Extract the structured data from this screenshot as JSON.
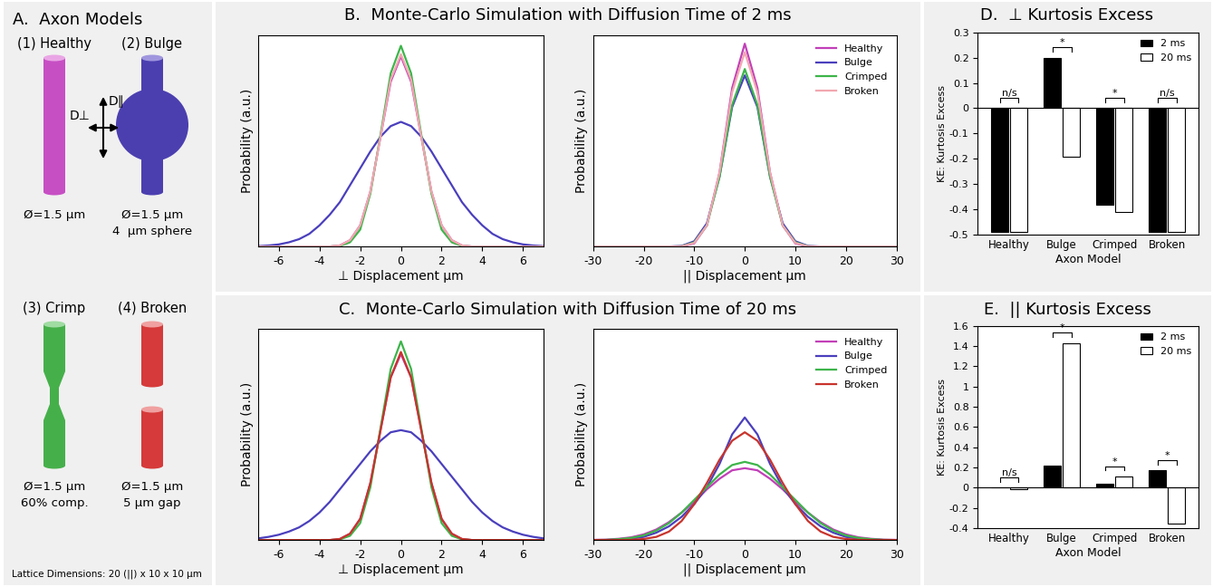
{
  "diagram": {
    "title": "A.  Axon Models",
    "models": [
      {
        "label": "(1) Healthy",
        "caption": [
          "Ø=1.5 µm"
        ]
      },
      {
        "label": "(2) Bulge",
        "caption": [
          "Ø=1.5 µm",
          "4  µm sphere"
        ]
      },
      {
        "label": "(3) Crimp",
        "caption": [
          "Ø=1.5 µm",
          "60% comp."
        ]
      },
      {
        "label": "(4) Broken",
        "caption": [
          "Ø=1.5 µm",
          "5 µm gap"
        ]
      }
    ],
    "axis_labels": {
      "parallel": "D∥",
      "perpendicular": "D⊥"
    },
    "footer": "Lattice Dimensions: 20 (||) x 10 x 10 µm"
  },
  "chart_data": [
    {
      "type": "line",
      "title": "B.  Monte-Carlo Simulation with Diffusion Time of 2 ms",
      "xlabel": "⊥ Displacement µm",
      "ylabel": "Probability (a.u.)",
      "x": [
        -7,
        -6.5,
        -6,
        -5.5,
        -5,
        -4.5,
        -4,
        -3.5,
        -3,
        -2.5,
        -2,
        -1.5,
        -1,
        -0.5,
        0,
        0.5,
        1,
        1.5,
        2,
        2.5,
        3,
        3.5,
        4,
        4.5,
        5,
        5.5,
        6,
        6.5,
        7
      ],
      "series": [
        {
          "name": "Healthy",
          "color": "#c23fb8",
          "values": [
            0,
            0,
            0,
            0,
            0,
            0,
            0,
            0,
            0.005,
            0.03,
            0.1,
            0.26,
            0.52,
            0.78,
            0.9,
            0.78,
            0.52,
            0.26,
            0.1,
            0.03,
            0.005,
            0,
            0,
            0,
            0,
            0,
            0,
            0,
            0
          ]
        },
        {
          "name": "Bulge",
          "color": "#4a3fbd",
          "values": [
            0.002,
            0.005,
            0.01,
            0.02,
            0.035,
            0.06,
            0.1,
            0.15,
            0.21,
            0.29,
            0.37,
            0.45,
            0.52,
            0.57,
            0.59,
            0.57,
            0.52,
            0.45,
            0.37,
            0.29,
            0.21,
            0.15,
            0.1,
            0.06,
            0.035,
            0.02,
            0.01,
            0.005,
            0.002
          ]
        },
        {
          "name": "Crimped",
          "color": "#3db54a",
          "values": [
            0,
            0,
            0,
            0,
            0,
            0,
            0,
            0,
            0.003,
            0.02,
            0.08,
            0.25,
            0.53,
            0.82,
            0.95,
            0.82,
            0.53,
            0.25,
            0.08,
            0.02,
            0.003,
            0,
            0,
            0,
            0,
            0,
            0,
            0,
            0
          ]
        },
        {
          "name": "Broken",
          "color": "#f2a7b0",
          "values": [
            0,
            0,
            0,
            0,
            0,
            0,
            0,
            0,
            0.005,
            0.03,
            0.1,
            0.26,
            0.52,
            0.79,
            0.91,
            0.79,
            0.52,
            0.26,
            0.1,
            0.03,
            0.005,
            0,
            0,
            0,
            0,
            0,
            0,
            0,
            0
          ]
        }
      ],
      "xlim": [
        -7,
        7
      ],
      "xticks": [
        -6,
        -4,
        -2,
        0,
        2,
        4,
        6
      ],
      "ylim": [
        0,
        1
      ],
      "tick_labels": "x"
    },
    {
      "type": "line",
      "xlabel": "|| Displacement µm",
      "ylabel": "Probability (a.u.)",
      "x": [
        -30,
        -27.5,
        -25,
        -22.5,
        -20,
        -17.5,
        -15,
        -12.5,
        -10,
        -7.5,
        -5,
        -2.5,
        0,
        2.5,
        5,
        7.5,
        10,
        12.5,
        15,
        17.5,
        20,
        22.5,
        25,
        27.5,
        30
      ],
      "series": [
        {
          "name": "Healthy",
          "color": "#c23fb8",
          "values": [
            0,
            0,
            0,
            0,
            0,
            0,
            0,
            0,
            0.015,
            0.1,
            0.35,
            0.75,
            0.96,
            0.75,
            0.35,
            0.1,
            0.015,
            0,
            0,
            0,
            0,
            0,
            0,
            0,
            0
          ]
        },
        {
          "name": "Bulge",
          "color": "#4a3fbd",
          "values": [
            0,
            0,
            0,
            0,
            0,
            0,
            0,
            0.003,
            0.025,
            0.11,
            0.33,
            0.66,
            0.81,
            0.66,
            0.33,
            0.11,
            0.025,
            0.003,
            0,
            0,
            0,
            0,
            0,
            0,
            0
          ]
        },
        {
          "name": "Crimped",
          "color": "#3db54a",
          "values": [
            0,
            0,
            0,
            0,
            0,
            0,
            0,
            0.001,
            0.02,
            0.1,
            0.33,
            0.67,
            0.84,
            0.67,
            0.33,
            0.1,
            0.02,
            0.001,
            0,
            0,
            0,
            0,
            0,
            0,
            0
          ]
        },
        {
          "name": "Broken",
          "color": "#f2a7b0",
          "values": [
            0,
            0,
            0,
            0,
            0,
            0,
            0,
            0.001,
            0.017,
            0.1,
            0.35,
            0.73,
            0.92,
            0.73,
            0.35,
            0.1,
            0.017,
            0.001,
            0,
            0,
            0,
            0,
            0,
            0,
            0
          ]
        }
      ],
      "xlim": [
        -30,
        30
      ],
      "xticks": [
        -30,
        -20,
        -10,
        0,
        10,
        20,
        30
      ],
      "ylim": [
        0,
        1
      ],
      "tick_labels": "x",
      "legend": "upper right"
    },
    {
      "type": "line",
      "title": "C.  Monte-Carlo Simulation with Diffusion Time of 20 ms",
      "xlabel": "⊥ Displacement µm",
      "ylabel": "Probability (a.u.)",
      "x": [
        -7,
        -6.5,
        -6,
        -5.5,
        -5,
        -4.5,
        -4,
        -3.5,
        -3,
        -2.5,
        -2,
        -1.5,
        -1,
        -0.5,
        0,
        0.5,
        1,
        1.5,
        2,
        2.5,
        3,
        3.5,
        4,
        4.5,
        5,
        5.5,
        6,
        6.5,
        7
      ],
      "series": [
        {
          "name": "Healthy",
          "color": "#c23fb8",
          "values": [
            0,
            0,
            0,
            0,
            0,
            0,
            0,
            0,
            0.005,
            0.03,
            0.1,
            0.27,
            0.52,
            0.77,
            0.88,
            0.77,
            0.52,
            0.27,
            0.1,
            0.03,
            0.005,
            0,
            0,
            0,
            0,
            0,
            0,
            0,
            0
          ]
        },
        {
          "name": "Bulge",
          "color": "#4a3fbd",
          "values": [
            0.008,
            0.015,
            0.025,
            0.04,
            0.06,
            0.09,
            0.13,
            0.18,
            0.24,
            0.3,
            0.36,
            0.42,
            0.47,
            0.51,
            0.52,
            0.51,
            0.47,
            0.42,
            0.36,
            0.3,
            0.24,
            0.18,
            0.13,
            0.09,
            0.06,
            0.04,
            0.025,
            0.015,
            0.008
          ]
        },
        {
          "name": "Crimped",
          "color": "#3db54a",
          "values": [
            0,
            0,
            0,
            0,
            0,
            0,
            0,
            0,
            0.003,
            0.02,
            0.08,
            0.25,
            0.53,
            0.81,
            0.94,
            0.81,
            0.53,
            0.25,
            0.08,
            0.02,
            0.003,
            0,
            0,
            0,
            0,
            0,
            0,
            0,
            0
          ]
        },
        {
          "name": "Broken",
          "color": "#c8342c",
          "values": [
            0,
            0,
            0,
            0,
            0,
            0,
            0,
            0,
            0.005,
            0.03,
            0.1,
            0.27,
            0.52,
            0.77,
            0.89,
            0.77,
            0.52,
            0.27,
            0.1,
            0.03,
            0.005,
            0,
            0,
            0,
            0,
            0,
            0,
            0,
            0
          ]
        }
      ],
      "xlim": [
        -7,
        7
      ],
      "xticks": [
        -6,
        -4,
        -2,
        0,
        2,
        4,
        6
      ],
      "ylim": [
        0,
        1
      ],
      "tick_labels": "x"
    },
    {
      "type": "line",
      "xlabel": "|| Displacement µm",
      "ylabel": "Probability (a.u.)",
      "x": [
        -30,
        -27.5,
        -25,
        -22.5,
        -20,
        -17.5,
        -15,
        -12.5,
        -10,
        -7.5,
        -5,
        -2.5,
        0,
        2.5,
        5,
        7.5,
        10,
        12.5,
        15,
        17.5,
        20,
        22.5,
        25,
        27.5,
        30
      ],
      "series": [
        {
          "name": "Healthy",
          "color": "#c23fb8",
          "values": [
            0.001,
            0.002,
            0.006,
            0.013,
            0.027,
            0.05,
            0.085,
            0.13,
            0.18,
            0.24,
            0.29,
            0.33,
            0.34,
            0.33,
            0.29,
            0.24,
            0.18,
            0.13,
            0.085,
            0.05,
            0.027,
            0.013,
            0.006,
            0.002,
            0.001
          ]
        },
        {
          "name": "Bulge",
          "color": "#4a3fbd",
          "values": [
            0,
            0,
            0.002,
            0.006,
            0.015,
            0.035,
            0.065,
            0.11,
            0.17,
            0.25,
            0.36,
            0.5,
            0.58,
            0.5,
            0.36,
            0.25,
            0.17,
            0.11,
            0.065,
            0.035,
            0.015,
            0.006,
            0.002,
            0,
            0
          ]
        },
        {
          "name": "Crimped",
          "color": "#3db54a",
          "values": [
            0,
            0.001,
            0.004,
            0.01,
            0.022,
            0.045,
            0.08,
            0.13,
            0.19,
            0.25,
            0.31,
            0.355,
            0.37,
            0.355,
            0.31,
            0.25,
            0.19,
            0.13,
            0.08,
            0.045,
            0.022,
            0.01,
            0.004,
            0.001,
            0
          ]
        },
        {
          "name": "Broken",
          "color": "#c8342c",
          "values": [
            0,
            0,
            0,
            0.001,
            0.005,
            0.015,
            0.04,
            0.09,
            0.17,
            0.27,
            0.38,
            0.47,
            0.51,
            0.47,
            0.38,
            0.27,
            0.17,
            0.09,
            0.04,
            0.015,
            0.005,
            0.001,
            0,
            0,
            0
          ]
        }
      ],
      "xlim": [
        -30,
        30
      ],
      "xticks": [
        -30,
        -20,
        -10,
        0,
        10,
        20,
        30
      ],
      "ylim": [
        0,
        1
      ],
      "tick_labels": "x",
      "legend": "upper right"
    },
    {
      "type": "bar",
      "title": "D.  ⊥ Kurtosis Excess",
      "xlabel": "Axon Model",
      "ylabel": "KE: Kurtosis Excess",
      "categories": [
        "Healthy",
        "Bulge",
        "Crimped",
        "Broken"
      ],
      "series": [
        {
          "name": "2 ms",
          "color": "#000000",
          "values": [
            -0.49,
            0.2,
            -0.38,
            -0.49
          ]
        },
        {
          "name": "20 ms",
          "color": "#ffffff",
          "values": [
            -0.49,
            -0.19,
            -0.41,
            -0.49
          ]
        }
      ],
      "annotations": [
        "n/s",
        "*",
        "*",
        "n/s"
      ],
      "ylim": [
        -0.5,
        0.3
      ],
      "yticks": [
        -0.5,
        -0.4,
        -0.3,
        -0.2,
        -0.1,
        0,
        0.1,
        0.2,
        0.3
      ],
      "legend": "upper right"
    },
    {
      "type": "bar",
      "title": "E.  || Kurtosis Excess",
      "xlabel": "Axon Model",
      "ylabel": "KE: Kurtosis Excess",
      "categories": [
        "Healthy",
        "Bulge",
        "Crimped",
        "Broken"
      ],
      "series": [
        {
          "name": "2 ms",
          "color": "#000000",
          "values": [
            0.0,
            0.22,
            0.04,
            0.17
          ]
        },
        {
          "name": "20 ms",
          "color": "#ffffff",
          "values": [
            -0.01,
            1.43,
            0.11,
            -0.35
          ]
        }
      ],
      "annotations": [
        "n/s",
        "*",
        "*",
        "*"
      ],
      "ylim": [
        -0.4,
        1.6
      ],
      "yticks": [
        -0.4,
        -0.2,
        0,
        0.2,
        0.4,
        0.6,
        0.8,
        1,
        1.2,
        1.4,
        1.6
      ],
      "legend": "upper right"
    }
  ]
}
